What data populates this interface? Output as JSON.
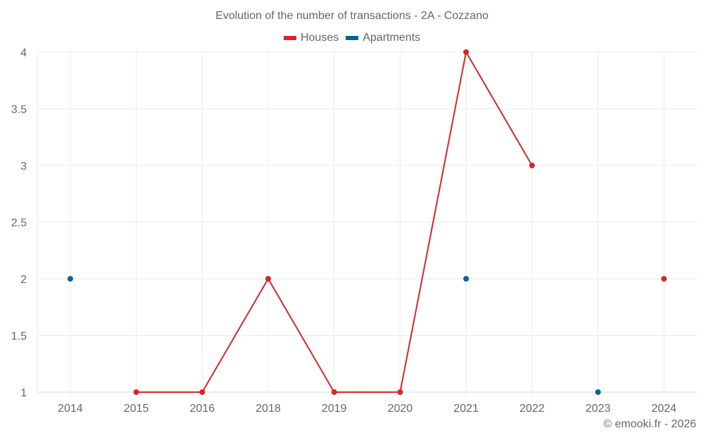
{
  "chart_data": {
    "type": "line",
    "title": "Evolution of the number of transactions - 2A - Cozzano",
    "xlabel": "",
    "ylabel": "",
    "categories": [
      "2014",
      "2015",
      "2016",
      "2018",
      "2019",
      "2020",
      "2021",
      "2022",
      "2023",
      "2024"
    ],
    "series": [
      {
        "name": "Houses",
        "color": "#d62728",
        "values": [
          null,
          1,
          1,
          2,
          1,
          1,
          4,
          3,
          null,
          2
        ]
      },
      {
        "name": "Apartments",
        "color": "#0066a0",
        "values": [
          2,
          null,
          null,
          null,
          null,
          null,
          2,
          null,
          1,
          null
        ]
      }
    ],
    "ylim": [
      1,
      4
    ],
    "yticks": [
      "1",
      "1.5",
      "2",
      "2.5",
      "3",
      "3.5",
      "4"
    ],
    "grid": true,
    "legend_position": "top"
  },
  "credit": "© emooki.fr - 2026"
}
